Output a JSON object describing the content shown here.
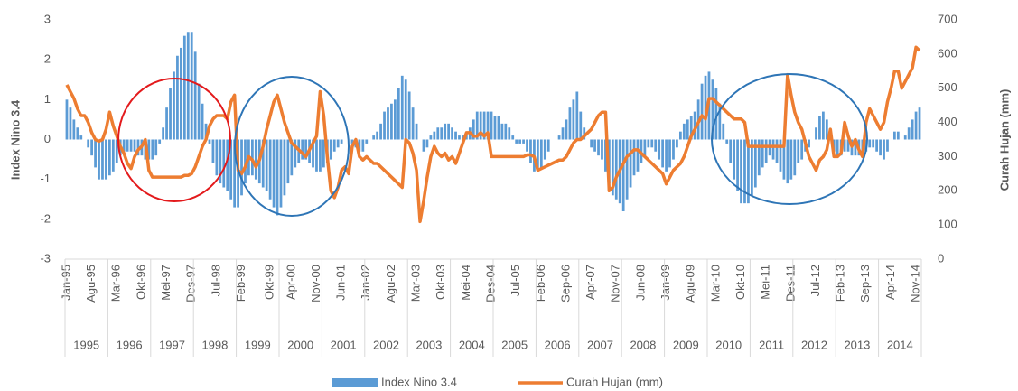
{
  "chart_data": {
    "type": "bar-line",
    "y_label": "Index Nino 3.4",
    "y2_label": "Curah Hujan (mm)",
    "legend": "bottom",
    "ylim": [
      -3,
      3
    ],
    "yticks": [
      -3,
      -2,
      -1,
      0,
      1,
      2,
      3
    ],
    "y2lim": [
      0,
      700
    ],
    "y2ticks": [
      0,
      100,
      200,
      300,
      400,
      500,
      600,
      700
    ],
    "categories": [
      "Jan-95",
      null,
      null,
      null,
      null,
      null,
      null,
      "Agu-95",
      null,
      null,
      null,
      null,
      null,
      null,
      "Mar-96",
      null,
      null,
      null,
      null,
      null,
      null,
      "Okt-96",
      null,
      null,
      null,
      null,
      null,
      null,
      "Mei-97",
      null,
      null,
      null,
      null,
      null,
      null,
      "Des-97",
      null,
      null,
      null,
      null,
      null,
      null,
      "Jul-98",
      null,
      null,
      null,
      null,
      null,
      null,
      "Feb-99",
      null,
      null,
      null,
      null,
      null,
      null,
      null,
      "Okt-99",
      null,
      null,
      null,
      null,
      null,
      "Apr-00",
      null,
      null,
      null,
      null,
      null,
      null,
      "Nov-00",
      null,
      null,
      null,
      null,
      null,
      null,
      "Jun-01",
      null,
      null,
      null,
      null,
      null,
      null,
      "Jan-02",
      null,
      null,
      null,
      null,
      null,
      null,
      "Agu-02",
      null,
      null,
      null,
      null,
      null,
      null,
      "Mar-03",
      null,
      null,
      null,
      null,
      null,
      null,
      "Okt-03",
      null,
      null,
      null,
      null,
      null,
      null,
      "Mei-04",
      null,
      null,
      null,
      null,
      null,
      null,
      "Des-04",
      null,
      null,
      null,
      null,
      null,
      null,
      "Jul-05",
      null,
      null,
      null,
      null,
      null,
      null,
      "Feb-06",
      null,
      null,
      null,
      null,
      null,
      null,
      "Sep-06",
      null,
      null,
      null,
      null,
      null,
      null,
      "Apr-07",
      null,
      null,
      null,
      null,
      null,
      null,
      "Nov-07",
      null,
      null,
      null,
      null,
      null,
      null,
      "Jun-08",
      null,
      null,
      null,
      null,
      null,
      null,
      "Jan-09",
      null,
      null,
      null,
      null,
      null,
      null,
      "Agu-09",
      null,
      null,
      null,
      null,
      null,
      null,
      "Mar-10",
      null,
      null,
      null,
      null,
      null,
      null,
      "Okt-10",
      null,
      null,
      null,
      null,
      null,
      null,
      "Mei-11",
      null,
      null,
      null,
      null,
      null,
      null,
      "Des-11",
      null,
      null,
      null,
      null,
      null,
      null,
      "Jul-12",
      null,
      null,
      null,
      null,
      null,
      null,
      "Feb-13",
      null,
      null,
      null,
      null,
      null,
      null,
      "Sep-13",
      null,
      null,
      null,
      null,
      null,
      null,
      "Apr-14",
      null,
      null,
      null,
      null,
      null,
      null,
      "Nov-14",
      null
    ],
    "years": [
      "1995",
      "1996",
      "1997",
      "1998",
      "1999",
      "2000",
      "2001",
      "2002",
      "2003",
      "2004",
      "2005",
      "2006",
      "2007",
      "2008",
      "2009",
      "2010",
      "2011",
      "2012",
      "2013",
      "2014"
    ],
    "series": [
      {
        "name": "Index Nino 3.4",
        "color": "#5b9bd5",
        "type": "bar",
        "values": [
          1.0,
          0.8,
          0.5,
          0.3,
          0.1,
          0,
          -0.2,
          -0.4,
          -0.7,
          -1.0,
          -1.0,
          -1.0,
          -0.9,
          -0.8,
          -0.6,
          -0.4,
          -0.3,
          -0.3,
          -0.3,
          -0.3,
          -0.4,
          -0.4,
          -0.5,
          -0.5,
          -0.5,
          -0.4,
          -0.1,
          0.3,
          0.8,
          1.3,
          1.7,
          2.1,
          2.3,
          2.6,
          2.7,
          2.7,
          2.2,
          1.4,
          0.9,
          0.4,
          -0.1,
          -0.6,
          -0.9,
          -1.1,
          -1.2,
          -1.3,
          -1.5,
          -1.7,
          -1.7,
          -1.4,
          -1.1,
          -0.9,
          -0.9,
          -1.0,
          -1.1,
          -1.2,
          -1.3,
          -1.5,
          -1.7,
          -1.9,
          -1.7,
          -1.4,
          -1.1,
          -0.9,
          -0.7,
          -0.6,
          -0.5,
          -0.5,
          -0.6,
          -0.7,
          -0.8,
          -0.8,
          -0.7,
          -0.6,
          -0.5,
          -0.3,
          -0.2,
          -0.1,
          0,
          0,
          -0.1,
          -0.2,
          -0.3,
          -0.3,
          -0.1,
          0,
          0.1,
          0.2,
          0.4,
          0.7,
          0.8,
          0.9,
          1.0,
          1.3,
          1.6,
          1.5,
          1.2,
          0.8,
          0.4,
          0,
          -0.3,
          -0.2,
          0.1,
          0.2,
          0.3,
          0.3,
          0.4,
          0.4,
          0.3,
          0.2,
          0.1,
          0.1,
          0.2,
          0.3,
          0.5,
          0.7,
          0.7,
          0.7,
          0.7,
          0.7,
          0.6,
          0.6,
          0.4,
          0.4,
          0.3,
          0.1,
          -0.1,
          -0.1,
          -0.1,
          -0.3,
          -0.6,
          -0.8,
          -0.8,
          -0.7,
          -0.5,
          -0.3,
          0,
          0,
          0.1,
          0.3,
          0.5,
          0.8,
          1.0,
          1.2,
          0.7,
          0.3,
          0,
          -0.2,
          -0.3,
          -0.4,
          -0.5,
          -0.8,
          -1.1,
          -1.4,
          -1.5,
          -1.6,
          -1.8,
          -1.5,
          -1.2,
          -0.9,
          -0.8,
          -0.6,
          -0.4,
          -0.2,
          -0.2,
          -0.3,
          -0.5,
          -0.7,
          -0.8,
          -0.7,
          -0.5,
          -0.2,
          0.2,
          0.4,
          0.5,
          0.6,
          0.7,
          1.0,
          1.4,
          1.6,
          1.7,
          1.5,
          1.3,
          0.9,
          0.4,
          -0.1,
          -0.6,
          -1.0,
          -1.3,
          -1.6,
          -1.6,
          -1.6,
          -1.4,
          -1.2,
          -0.9,
          -0.7,
          -0.6,
          -0.4,
          -0.5,
          -0.6,
          -0.8,
          -1.0,
          -1.1,
          -1.0,
          -0.9,
          -0.6,
          -0.5,
          -0.3,
          -0.2,
          0,
          0.3,
          0.6,
          0.7,
          0.5,
          0.2,
          -0.3,
          -0.4,
          -0.4,
          -0.3,
          -0.3,
          -0.4,
          -0.4,
          -0.4,
          -0.3,
          -0.3,
          -0.2,
          -0.2,
          -0.3,
          -0.4,
          -0.5,
          -0.3,
          0,
          0.2,
          0.2,
          0,
          0.1,
          0.3,
          0.5,
          0.7,
          0.8
        ]
      },
      {
        "name": "Curah Hujan (mm)",
        "color": "#ed7d31",
        "type": "line",
        "axis": "y2",
        "values": [
          510,
          490,
          470,
          440,
          420,
          420,
          400,
          370,
          350,
          345,
          350,
          380,
          430,
          390,
          360,
          330,
          310,
          280,
          265,
          300,
          320,
          330,
          350,
          260,
          240,
          240,
          240,
          240,
          240,
          240,
          240,
          240,
          240,
          245,
          245,
          250,
          270,
          300,
          330,
          350,
          390,
          410,
          420,
          420,
          420,
          410,
          460,
          480,
          260,
          250,
          270,
          300,
          290,
          270,
          290,
          330,
          380,
          420,
          460,
          480,
          440,
          400,
          370,
          340,
          330,
          320,
          310,
          300,
          320,
          340,
          360,
          490,
          420,
          300,
          200,
          180,
          210,
          260,
          270,
          250,
          330,
          350,
          300,
          290,
          300,
          290,
          280,
          280,
          270,
          260,
          250,
          240,
          230,
          220,
          210,
          350,
          340,
          310,
          260,
          110,
          170,
          240,
          300,
          330,
          310,
          300,
          310,
          290,
          300,
          280,
          310,
          340,
          370,
          370,
          360,
          360,
          370,
          360,
          370,
          300,
          300,
          300,
          300,
          300,
          300,
          300,
          300,
          300,
          300,
          305,
          305,
          300,
          260,
          265,
          270,
          275,
          280,
          285,
          290,
          290,
          300,
          320,
          340,
          350,
          350,
          360,
          370,
          380,
          400,
          420,
          430,
          430,
          200,
          210,
          240,
          260,
          280,
          300,
          310,
          320,
          320,
          310,
          300,
          290,
          280,
          270,
          260,
          250,
          220,
          240,
          260,
          270,
          280,
          300,
          330,
          360,
          380,
          400,
          420,
          410,
          470,
          470,
          460,
          450,
          440,
          430,
          420,
          410,
          410,
          410,
          400,
          330,
          330,
          330,
          330,
          330,
          330,
          330,
          330,
          330,
          330,
          330,
          540,
          480,
          430,
          400,
          380,
          340,
          300,
          280,
          260,
          290,
          300,
          320,
          380,
          300,
          300,
          310,
          400,
          360,
          330,
          350,
          320,
          300,
          400,
          440,
          420,
          400,
          380,
          400,
          460,
          500,
          550,
          550,
          500,
          520,
          540,
          560,
          620,
          610
        ]
      }
    ]
  }
}
